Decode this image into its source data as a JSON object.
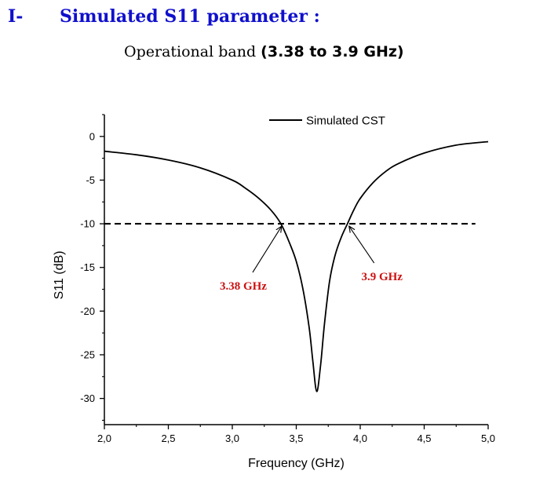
{
  "page": {
    "section_number": "I-",
    "section_title": "Simulated S11 parameter :",
    "band_prefix": "Operational band",
    "band_range": "(3.38 to 3.9 GHz)"
  },
  "chart_data": {
    "type": "line",
    "xlabel": "Frequency (GHz)",
    "ylabel": "S11 (dB)",
    "xlim": [
      2.0,
      5.0
    ],
    "ylim": [
      -33,
      2.5
    ],
    "x_ticks": [
      "2,0",
      "2,5",
      "3,0",
      "3,5",
      "4,0",
      "4,5",
      "5,0"
    ],
    "y_ticks": [
      "0",
      "-5",
      "-10",
      "-15",
      "-20",
      "-25",
      "-30"
    ],
    "legend": {
      "position": "top-right",
      "entries": [
        "Simulated CST"
      ]
    },
    "grid": false,
    "reference_line": {
      "y": -10,
      "style": "dashed"
    },
    "series": [
      {
        "name": "Simulated CST",
        "x": [
          2.0,
          2.25,
          2.5,
          2.75,
          3.0,
          3.1,
          3.2,
          3.3,
          3.38,
          3.45,
          3.5,
          3.55,
          3.6,
          3.63,
          3.66,
          3.69,
          3.72,
          3.76,
          3.8,
          3.85,
          3.9,
          3.95,
          4.0,
          4.1,
          4.2,
          4.3,
          4.5,
          4.75,
          5.0
        ],
        "y": [
          -1.7,
          -2.1,
          -2.7,
          -3.6,
          -5.0,
          -5.9,
          -7.0,
          -8.4,
          -10.0,
          -12.3,
          -14.3,
          -17.3,
          -21.8,
          -25.8,
          -29.2,
          -26.2,
          -21.5,
          -16.6,
          -13.8,
          -11.6,
          -10.0,
          -8.4,
          -7.1,
          -5.3,
          -4.0,
          -3.1,
          -1.9,
          -1.0,
          -0.6
        ]
      }
    ],
    "annotations": [
      {
        "text": "3.38 GHz",
        "x": 3.38,
        "y": -10
      },
      {
        "text": "3.9 GHz",
        "x": 3.9,
        "y": -10
      }
    ]
  }
}
